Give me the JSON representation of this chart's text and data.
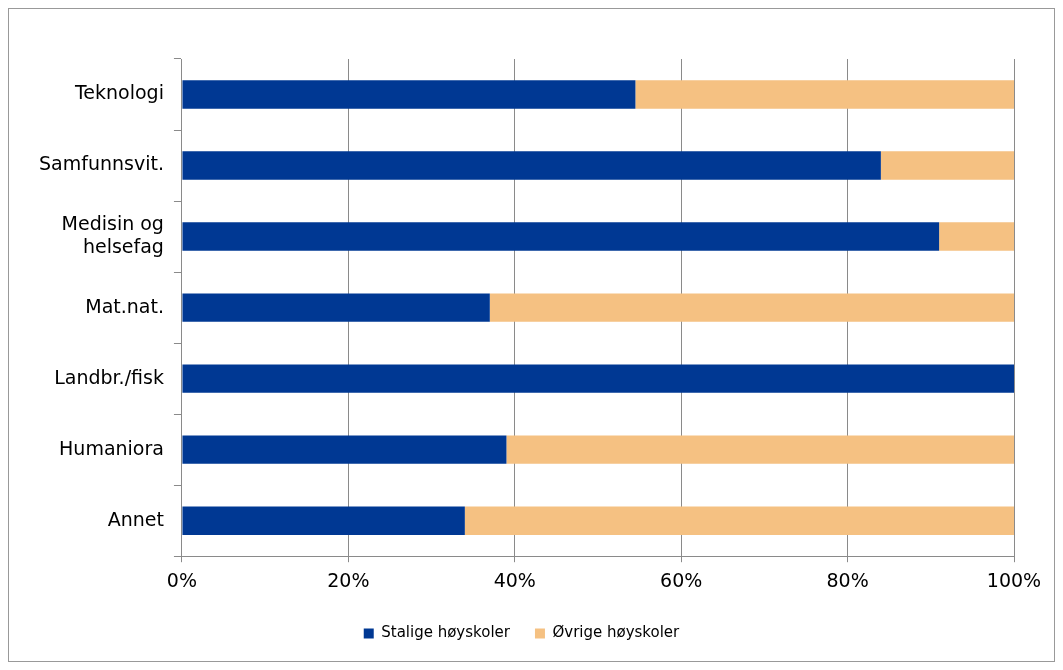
{
  "chart_data": {
    "type": "bar",
    "orientation": "horizontal",
    "stacked": true,
    "categories": [
      "Teknologi",
      "Samfunnsvit.",
      "Medisin og helsefag",
      "Mat.nat.",
      "Landbr./fisk",
      "Humaniora",
      "Annet"
    ],
    "series": [
      {
        "name": "Stalige høyskoler",
        "color": "#003893",
        "values": [
          54.5,
          84,
          91,
          37,
          100,
          39,
          34
        ]
      },
      {
        "name": "Øvrige høyskoler",
        "color": "#f5c182",
        "values": [
          45.5,
          16,
          9,
          63,
          0,
          61,
          66
        ]
      }
    ],
    "xlim": [
      0,
      100
    ],
    "xticks": [
      {
        "value": 0,
        "label": "0%"
      },
      {
        "value": 20,
        "label": "20%"
      },
      {
        "value": 40,
        "label": "40%"
      },
      {
        "value": 60,
        "label": "60%"
      },
      {
        "value": 80,
        "label": "80%"
      },
      {
        "value": 100,
        "label": "100%"
      }
    ],
    "grid": "x",
    "legend": "bottom"
  }
}
